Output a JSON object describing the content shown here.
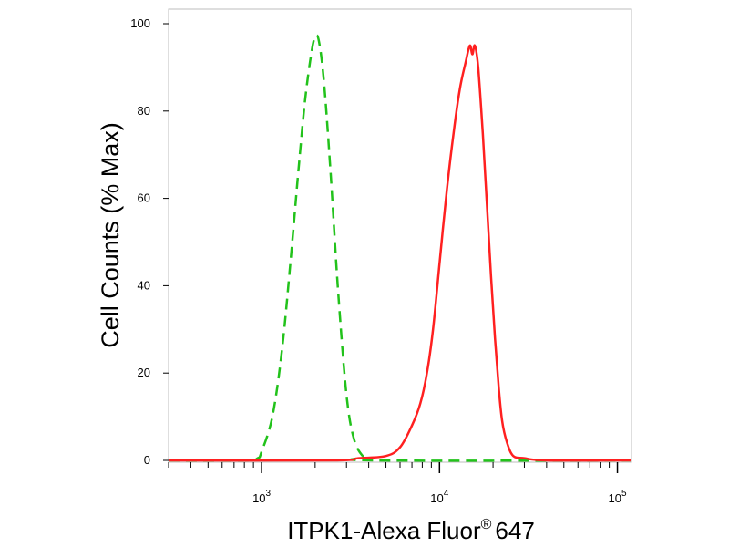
{
  "chart_data": {
    "type": "line",
    "title": "",
    "xlabel": "ITPK1-Alexa Fluor",
    "xlabel_superscript": "®",
    "xlabel_suffix": "647",
    "ylabel": "Cell Counts (% Max)",
    "x_scale": "log",
    "xlim": [
      300,
      120000
    ],
    "ylim": [
      0,
      100
    ],
    "y_ticks": [
      {
        "value": 0,
        "label": "0"
      },
      {
        "value": 20,
        "label": "20"
      },
      {
        "value": 40,
        "label": "40"
      },
      {
        "value": 60,
        "label": "60"
      },
      {
        "value": 80,
        "label": "80"
      },
      {
        "value": 100,
        "label": "100"
      }
    ],
    "x_major_ticks": [
      {
        "value": 1000,
        "base": "10",
        "exp": "3"
      },
      {
        "value": 10000,
        "base": "10",
        "exp": "4"
      },
      {
        "value": 100000,
        "base": "10",
        "exp": "5"
      }
    ],
    "grid": false,
    "legend": "none",
    "series": [
      {
        "color": "#22c21b",
        "dash": "dashed",
        "points": [
          [
            300,
            0
          ],
          [
            800,
            0
          ],
          [
            950,
            0.5
          ],
          [
            1000,
            2
          ],
          [
            1150,
            10
          ],
          [
            1300,
            25
          ],
          [
            1450,
            45
          ],
          [
            1600,
            65
          ],
          [
            1750,
            82
          ],
          [
            1900,
            93
          ],
          [
            2000,
            97
          ],
          [
            2100,
            96
          ],
          [
            2250,
            86
          ],
          [
            2450,
            65
          ],
          [
            2700,
            38
          ],
          [
            3000,
            15
          ],
          [
            3300,
            5
          ],
          [
            3700,
            1
          ],
          [
            4200,
            0
          ],
          [
            120000,
            0
          ]
        ]
      },
      {
        "color": "#ff2020",
        "dash": "solid",
        "points": [
          [
            300,
            0
          ],
          [
            2500,
            0
          ],
          [
            3500,
            0.5
          ],
          [
            5000,
            1
          ],
          [
            6000,
            3
          ],
          [
            7000,
            8
          ],
          [
            7800,
            13
          ],
          [
            8500,
            20
          ],
          [
            9200,
            30
          ],
          [
            10000,
            45
          ],
          [
            11000,
            62
          ],
          [
            12000,
            75
          ],
          [
            13000,
            85
          ],
          [
            14000,
            91
          ],
          [
            14800,
            95
          ],
          [
            15300,
            93
          ],
          [
            15800,
            95
          ],
          [
            16500,
            90
          ],
          [
            17500,
            75
          ],
          [
            18500,
            58
          ],
          [
            19500,
            42
          ],
          [
            20500,
            28
          ],
          [
            21500,
            17
          ],
          [
            22500,
            9
          ],
          [
            24000,
            4
          ],
          [
            26000,
            1
          ],
          [
            30000,
            0.5
          ],
          [
            40000,
            0
          ],
          [
            120000,
            0
          ]
        ]
      }
    ]
  }
}
